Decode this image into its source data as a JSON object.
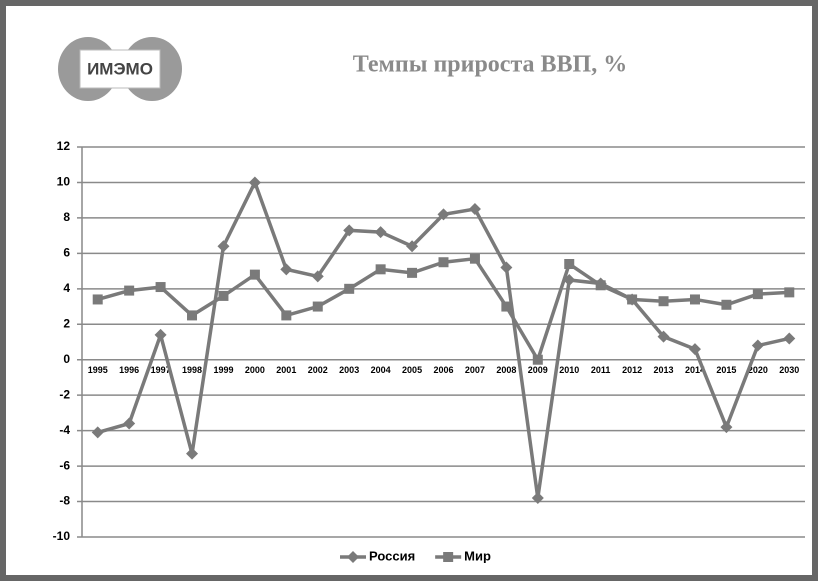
{
  "logo": "ИМЭМО",
  "chart_data": {
    "type": "line",
    "title": "Темпы прироста ВВП, %",
    "categories": [
      "1995",
      "1996",
      "1997",
      "1998",
      "1999",
      "2000",
      "2001",
      "2002",
      "2003",
      "2004",
      "2005",
      "2006",
      "2007",
      "2008",
      "2009",
      "2010",
      "2011",
      "2012",
      "2013",
      "2014",
      "2015",
      "2020",
      "2030"
    ],
    "series": [
      {
        "name": "Россия",
        "color": "#7a7a7a",
        "marker": "diamond",
        "values": [
          -4.1,
          -3.6,
          1.4,
          -5.3,
          6.4,
          10.0,
          5.1,
          4.7,
          7.3,
          7.2,
          6.4,
          8.2,
          8.5,
          5.2,
          -7.8,
          4.5,
          4.3,
          3.4,
          1.3,
          0.6,
          -3.8,
          0.8,
          1.2
        ]
      },
      {
        "name": "Мир",
        "color": "#7a7a7a",
        "marker": "square",
        "values": [
          3.4,
          3.9,
          4.1,
          2.5,
          3.6,
          4.8,
          2.5,
          3.0,
          4.0,
          5.1,
          4.9,
          5.5,
          5.7,
          3.0,
          0.0,
          5.4,
          4.2,
          3.4,
          3.3,
          3.4,
          3.1,
          3.7,
          3.8
        ]
      }
    ],
    "ylim": [
      -10,
      12
    ],
    "yticks": [
      -10,
      -8,
      -6,
      -4,
      -2,
      0,
      2,
      4,
      6,
      8,
      10,
      12
    ],
    "grid": true,
    "legend": "bottom"
  }
}
